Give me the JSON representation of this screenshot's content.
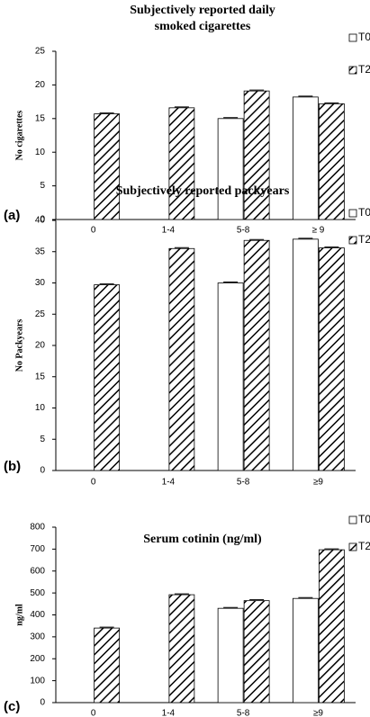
{
  "chart_data": [
    {
      "type": "bar",
      "panel": "(a)",
      "title": [
        "Subjectively reported  daily",
        "smoked cigarettes"
      ],
      "y_label": "No cigarettes",
      "categories": [
        "0",
        "1-4",
        "5-8",
        "≥ 9"
      ],
      "series": [
        {
          "name": "T0",
          "values": [
            null,
            null,
            15,
            18.2
          ]
        },
        {
          "name": "T2",
          "values": [
            15.7,
            16.6,
            19.1,
            17.2
          ]
        }
      ],
      "ylim": [
        0,
        25
      ],
      "yticks": [
        0,
        5,
        10,
        15,
        20,
        25
      ]
    },
    {
      "type": "bar",
      "panel": "(b)",
      "title": [
        "Subjectively reported packyears"
      ],
      "y_label": "No Packyears",
      "categories": [
        "0",
        "1-4",
        "5-8",
        "≥9"
      ],
      "series": [
        {
          "name": "T0",
          "values": [
            null,
            null,
            30,
            37
          ]
        },
        {
          "name": "T2",
          "values": [
            29.7,
            35.5,
            36.8,
            35.6
          ]
        }
      ],
      "ylim": [
        0,
        40
      ],
      "yticks": [
        0,
        5,
        10,
        15,
        20,
        25,
        30,
        35,
        40
      ]
    },
    {
      "type": "bar",
      "panel": "(c)",
      "title": [
        "Serum cotinin (ng/ml)"
      ],
      "y_label": "ng/ml",
      "categories": [
        "0",
        "1-4",
        "5-8",
        "≥9"
      ],
      "series": [
        {
          "name": "T0",
          "values": [
            null,
            null,
            430,
            475
          ]
        },
        {
          "name": "T2",
          "values": [
            340,
            492,
            465,
            697
          ]
        }
      ],
      "ylim": [
        0,
        800
      ],
      "yticks": [
        0,
        100,
        200,
        300,
        400,
        500,
        600,
        700,
        800
      ]
    }
  ]
}
